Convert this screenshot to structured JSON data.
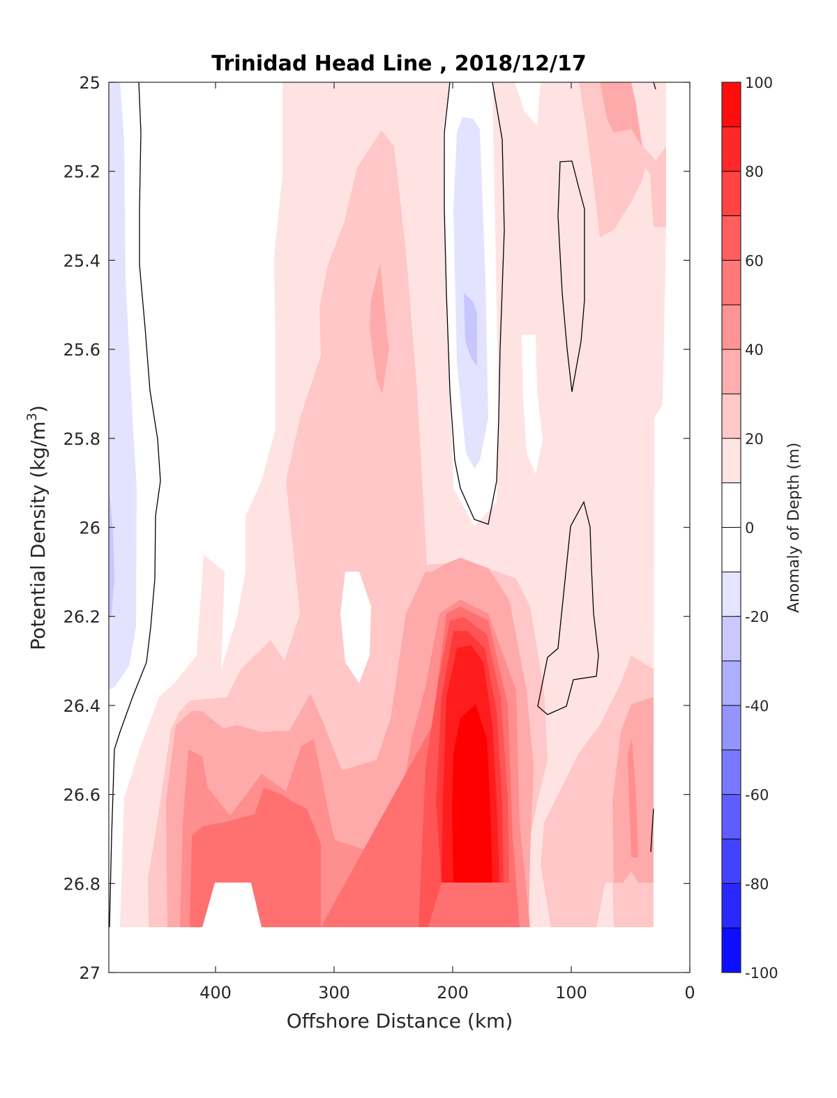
{
  "chart_data": {
    "type": "contourf",
    "title": "Trinidad Head Line , 2018/12/17",
    "xlabel": "Offshore Distance (km)",
    "ylabel": "Potential Density (kg/m3)",
    "ylabel_main": "Potential Density (kg/m",
    "ylabel_sup": "3",
    "ylabel_close": ")",
    "xlim": [
      490,
      0
    ],
    "ylim": [
      27,
      25
    ],
    "x_reversed": true,
    "y_reversed": true,
    "x_ticks": [
      "400",
      "300",
      "200",
      "100",
      "0"
    ],
    "y_ticks": [
      "25",
      "25.2",
      "25.4",
      "25.6",
      "25.8",
      "26",
      "26.2",
      "26.4",
      "26.6",
      "26.8",
      "27"
    ],
    "colorbar": {
      "label": "Anomaly of Depth (m)",
      "range": [
        -100,
        100
      ],
      "level_step": 10,
      "ticks": [
        "-100",
        "-80",
        "-60",
        "-40",
        "-20",
        "0",
        "20",
        "40",
        "60",
        "80",
        "100"
      ],
      "colormap": "blue-white-red"
    },
    "features": [
      {
        "feature": "max positive anomaly",
        "x_km": 183,
        "density": 26.6,
        "anomaly_m": 100
      },
      {
        "feature": "positive anomaly band",
        "x_km": 260,
        "density": 25.55,
        "anomaly_m": 30
      },
      {
        "feature": "negative anomaly",
        "x_km": 180,
        "density": 25.55,
        "anomaly_m": -20
      },
      {
        "feature": "negative anomaly offshore",
        "x_km": 485,
        "density": 26.05,
        "anomaly_m": -20
      },
      {
        "feature": "positive anomaly nearshore",
        "x_km": 50,
        "density": 26.6,
        "anomaly_m": 40
      }
    ]
  }
}
